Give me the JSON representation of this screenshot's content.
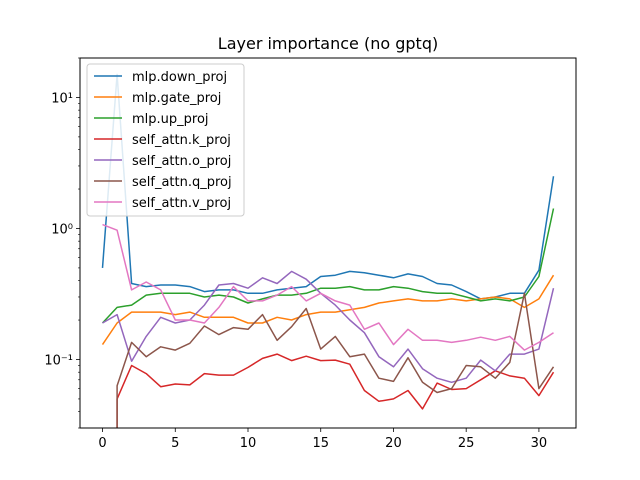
{
  "chart_data": {
    "type": "line",
    "title": "Layer importance (no gptq)",
    "xlabel": "",
    "ylabel": "",
    "yscale": "log",
    "xlim": [
      -1.55,
      32.55
    ],
    "ylim": [
      0.03,
      20
    ],
    "grid": false,
    "legend_position": "top-left",
    "x_ticks": [
      0,
      5,
      10,
      15,
      20,
      25,
      30
    ],
    "x_tick_labels": [
      "0",
      "5",
      "10",
      "15",
      "20",
      "25",
      "30"
    ],
    "y_ticks": [
      0.1,
      1,
      10
    ],
    "y_tick_labels": [
      "10⁻¹",
      "10⁰",
      "10¹"
    ],
    "x": [
      0,
      1,
      2,
      3,
      4,
      5,
      6,
      7,
      8,
      9,
      10,
      11,
      12,
      13,
      14,
      15,
      16,
      17,
      18,
      19,
      20,
      21,
      22,
      23,
      24,
      25,
      26,
      27,
      28,
      29,
      30,
      31
    ],
    "series": [
      {
        "name": "mlp.down_proj",
        "color": "#1f77b4",
        "values": [
          0.5,
          15,
          0.38,
          0.36,
          0.37,
          0.37,
          0.36,
          0.33,
          0.34,
          0.34,
          0.32,
          0.32,
          0.34,
          0.35,
          0.36,
          0.43,
          0.44,
          0.47,
          0.46,
          0.44,
          0.42,
          0.45,
          0.43,
          0.38,
          0.37,
          0.33,
          0.29,
          0.3,
          0.32,
          0.32,
          0.48,
          2.5
        ]
      },
      {
        "name": "mlp.gate_proj",
        "color": "#ff7f0e",
        "values": [
          0.13,
          0.19,
          0.23,
          0.23,
          0.23,
          0.22,
          0.23,
          0.21,
          0.21,
          0.21,
          0.19,
          0.19,
          0.21,
          0.2,
          0.22,
          0.23,
          0.23,
          0.24,
          0.25,
          0.27,
          0.28,
          0.29,
          0.28,
          0.28,
          0.29,
          0.28,
          0.29,
          0.3,
          0.29,
          0.25,
          0.29,
          0.44
        ]
      },
      {
        "name": "mlp.up_proj",
        "color": "#2ca02c",
        "values": [
          0.19,
          0.25,
          0.26,
          0.31,
          0.32,
          0.32,
          0.32,
          0.3,
          0.31,
          0.3,
          0.27,
          0.29,
          0.31,
          0.31,
          0.32,
          0.35,
          0.35,
          0.36,
          0.34,
          0.34,
          0.36,
          0.35,
          0.33,
          0.32,
          0.32,
          0.3,
          0.28,
          0.29,
          0.28,
          0.3,
          0.43,
          1.42
        ]
      },
      {
        "name": "self_attn.k_proj",
        "color": "#d62728",
        "values": [
          null,
          0.05,
          0.09,
          0.078,
          0.062,
          0.065,
          0.064,
          0.078,
          0.076,
          0.076,
          0.087,
          0.102,
          0.11,
          0.098,
          0.106,
          0.098,
          0.099,
          0.092,
          0.058,
          0.048,
          0.05,
          0.058,
          0.042,
          0.066,
          0.059,
          0.06,
          0.07,
          0.082,
          0.075,
          0.072,
          0.053,
          0.08
        ]
      },
      {
        "name": "self_attn.o_proj",
        "color": "#9467bd",
        "values": [
          0.19,
          0.22,
          0.097,
          0.15,
          0.21,
          0.19,
          0.2,
          0.26,
          0.37,
          0.38,
          0.35,
          0.42,
          0.38,
          0.47,
          0.41,
          0.32,
          0.26,
          0.2,
          0.16,
          0.105,
          0.088,
          0.12,
          0.085,
          0.072,
          0.067,
          0.072,
          0.099,
          0.082,
          0.11,
          0.11,
          0.12,
          0.35
        ]
      },
      {
        "name": "self_attn.q_proj",
        "color": "#8c564b",
        "values": [
          null,
          0.063,
          0.135,
          0.105,
          0.125,
          0.118,
          0.133,
          0.18,
          0.155,
          0.175,
          0.17,
          0.22,
          0.14,
          0.178,
          0.245,
          0.12,
          0.15,
          0.105,
          0.11,
          0.072,
          0.068,
          0.103,
          0.067,
          0.056,
          0.06,
          0.09,
          0.088,
          0.072,
          0.095,
          0.32,
          0.06,
          0.088
        ]
      },
      {
        "name": "self_attn.v_proj",
        "color": "#e377c2",
        "values": [
          1.07,
          0.97,
          0.34,
          0.39,
          0.34,
          0.2,
          0.2,
          0.19,
          0.25,
          0.36,
          0.28,
          0.28,
          0.31,
          0.36,
          0.28,
          0.32,
          0.28,
          0.26,
          0.17,
          0.19,
          0.13,
          0.17,
          0.14,
          0.14,
          0.135,
          0.14,
          0.148,
          0.14,
          0.15,
          0.118,
          0.135,
          0.16
        ]
      }
    ]
  }
}
